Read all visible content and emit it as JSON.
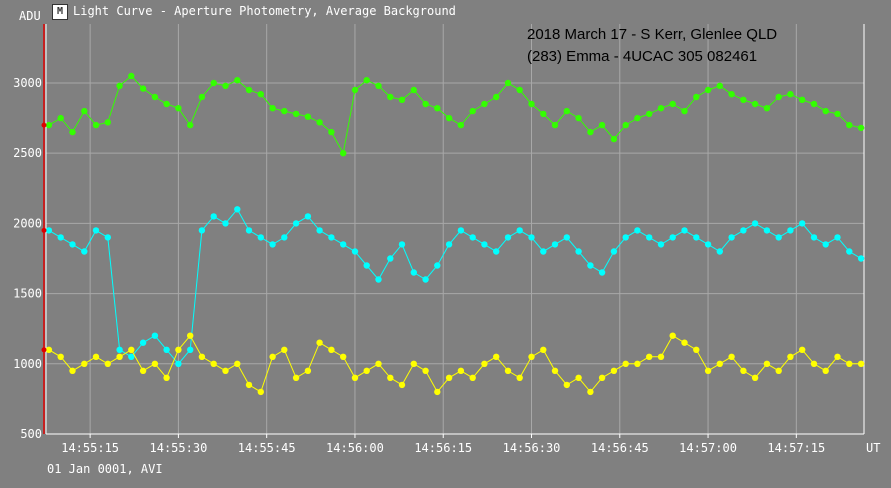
{
  "window": {
    "title": "Light Curve - Aperture Photometry, Average Background",
    "icon": "light-curve-app-icon"
  },
  "footer": {
    "text": "01 Jan 0001, AVI"
  },
  "chart_data": {
    "type": "scatter",
    "title": "",
    "ylabel": "ADU",
    "xlabel": "UT",
    "annotations": [
      "2018 March 17 - S Kerr, Glenlee QLD",
      "(283) Emma - 4UCAC 305 082461"
    ],
    "x_ticks": [
      "14:55:15",
      "14:55:30",
      "14:55:45",
      "14:56:00",
      "14:56:15",
      "14:56:30",
      "14:56:45",
      "14:57:00",
      "14:57:15"
    ],
    "x_tick_seconds": [
      15,
      30,
      45,
      60,
      75,
      90,
      105,
      120,
      135
    ],
    "xlim_seconds": [
      7.5,
      146.5
    ],
    "x_origin": "14:55:00",
    "y_ticks": [
      500,
      1000,
      1500,
      2000,
      2500,
      3000
    ],
    "ylim": [
      500,
      3420
    ],
    "grid": true,
    "colors": {
      "background": "#808080",
      "grid": "#a8a8a8",
      "axis": "#ffffff",
      "cursor": "#dd0000",
      "series_green": "#33ff00",
      "series_cyan": "#00ffff",
      "series_yellow": "#ffff00"
    },
    "series": [
      {
        "color": "#33ff00",
        "x": [
          8,
          10,
          12,
          14,
          16,
          18,
          20,
          22,
          24,
          26,
          28,
          30,
          32,
          34,
          36,
          38,
          40,
          42,
          44,
          46,
          48,
          50,
          52,
          54,
          56,
          58,
          60,
          62,
          64,
          66,
          68,
          70,
          72,
          74,
          76,
          78,
          80,
          82,
          84,
          86,
          88,
          90,
          92,
          94,
          96,
          98,
          100,
          102,
          104,
          106,
          108,
          110,
          112,
          114,
          116,
          118,
          120,
          122,
          124,
          126,
          128,
          130,
          132,
          134,
          136,
          138,
          140,
          142,
          144,
          146
        ],
        "values": [
          2700,
          2750,
          2650,
          2800,
          2700,
          2720,
          2980,
          3050,
          2960,
          2900,
          2850,
          2820,
          2700,
          2900,
          3000,
          2980,
          3020,
          2950,
          2920,
          2820,
          2800,
          2780,
          2760,
          2720,
          2650,
          2500,
          2950,
          3020,
          2980,
          2900,
          2880,
          2950,
          2850,
          2820,
          2750,
          2700,
          2800,
          2850,
          2900,
          3000,
          2950,
          2850,
          2780,
          2700,
          2800,
          2750,
          2650,
          2700,
          2600,
          2700,
          2750,
          2780,
          2820,
          2850,
          2800,
          2900,
          2950,
          2980,
          2920,
          2880,
          2850,
          2820,
          2900,
          2920,
          2880,
          2850,
          2800,
          2780,
          2700,
          2680
        ]
      },
      {
        "color": "#00ffff",
        "x": [
          8,
          10,
          12,
          14,
          16,
          18,
          20,
          22,
          24,
          26,
          28,
          30,
          32,
          34,
          36,
          38,
          40,
          42,
          44,
          46,
          48,
          50,
          52,
          54,
          56,
          58,
          60,
          62,
          64,
          66,
          68,
          70,
          72,
          74,
          76,
          78,
          80,
          82,
          84,
          86,
          88,
          90,
          92,
          94,
          96,
          98,
          100,
          102,
          104,
          106,
          108,
          110,
          112,
          114,
          116,
          118,
          120,
          122,
          124,
          126,
          128,
          130,
          132,
          134,
          136,
          138,
          140,
          142,
          144,
          146
        ],
        "values": [
          1950,
          1900,
          1850,
          1800,
          1950,
          1900,
          1100,
          1050,
          1150,
          1200,
          1100,
          1000,
          1100,
          1950,
          2050,
          2000,
          2100,
          1950,
          1900,
          1850,
          1900,
          2000,
          2050,
          1950,
          1900,
          1850,
          1800,
          1700,
          1600,
          1750,
          1850,
          1650,
          1600,
          1700,
          1850,
          1950,
          1900,
          1850,
          1800,
          1900,
          1950,
          1900,
          1800,
          1850,
          1900,
          1800,
          1700,
          1650,
          1800,
          1900,
          1950,
          1900,
          1850,
          1900,
          1950,
          1900,
          1850,
          1800,
          1900,
          1950,
          2000,
          1950,
          1900,
          1950,
          2000,
          1900,
          1850,
          1900,
          1800,
          1750
        ]
      },
      {
        "color": "#ffff00",
        "x": [
          8,
          10,
          12,
          14,
          16,
          18,
          20,
          22,
          24,
          26,
          28,
          30,
          32,
          34,
          36,
          38,
          40,
          42,
          44,
          46,
          48,
          50,
          52,
          54,
          56,
          58,
          60,
          62,
          64,
          66,
          68,
          70,
          72,
          74,
          76,
          78,
          80,
          82,
          84,
          86,
          88,
          90,
          92,
          94,
          96,
          98,
          100,
          102,
          104,
          106,
          108,
          110,
          112,
          114,
          116,
          118,
          120,
          122,
          124,
          126,
          128,
          130,
          132,
          134,
          136,
          138,
          140,
          142,
          144,
          146
        ],
        "values": [
          1100,
          1050,
          950,
          1000,
          1050,
          1000,
          1050,
          1100,
          950,
          1000,
          900,
          1100,
          1200,
          1050,
          1000,
          950,
          1000,
          850,
          800,
          1050,
          1100,
          900,
          950,
          1150,
          1100,
          1050,
          900,
          950,
          1000,
          900,
          850,
          1000,
          950,
          800,
          900,
          950,
          900,
          1000,
          1050,
          950,
          900,
          1050,
          1100,
          950,
          850,
          900,
          800,
          900,
          950,
          1000,
          1000,
          1050,
          1050,
          1200,
          1150,
          1100,
          950,
          1000,
          1050,
          950,
          900,
          1000,
          950,
          1050,
          1100,
          1000,
          950,
          1050,
          1000,
          1000
        ]
      }
    ]
  }
}
